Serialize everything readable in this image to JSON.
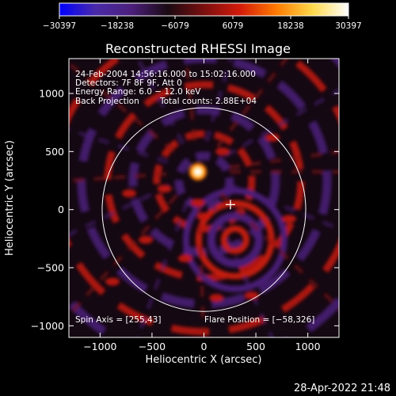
{
  "chart_data": {
    "type": "heatmap",
    "title": "Reconstructed RHESSI Image",
    "xlabel": "Heliocentric X (arcsec)",
    "ylabel": "Heliocentric Y (arcsec)",
    "xlim": [
      -1300,
      1300
    ],
    "ylim": [
      -1100,
      1300
    ],
    "xticks": [
      -1000,
      -500,
      0,
      500,
      1000
    ],
    "xtick_labels": [
      "−1000",
      "−500",
      "0",
      "500",
      "1000"
    ],
    "yticks": [
      -1000,
      -500,
      0,
      500,
      1000
    ],
    "ytick_labels": [
      "−1000",
      "−500",
      "0",
      "500",
      "1000"
    ],
    "colorbar": {
      "min": -30397,
      "max": 30397,
      "ticks": [
        -30397,
        -18238,
        -6079,
        6079,
        18238,
        30397
      ],
      "tick_labels": [
        "−30397",
        "−18238",
        "−6079",
        "6079",
        "18238",
        "30397"
      ]
    },
    "annotations": [
      "24-Feb-2004 14:56:16.000 to 15:02:16.000",
      "Detectors: 7F 8F 9F, Att 0",
      "Energy Range: 6.0 − 12.0 keV",
      "Back Projection",
      "Total counts: 2.88E+04"
    ],
    "footer_left": "Spin Axis = [255,43]",
    "footer_right": "Flare Position = [−58,326]",
    "spin_axis": [
      255,
      43
    ],
    "flare_position": [
      -58,
      326
    ],
    "solar_limb_radius": 980,
    "colormap": [
      "#0000ff",
      "#4a2aa8",
      "#4b1f7a",
      "#1a0a12",
      "#7a0f0f",
      "#d41a0a",
      "#ff7a00",
      "#ffd84a",
      "#ffffff"
    ]
  },
  "timestamp": "28-Apr-2022 21:48"
}
